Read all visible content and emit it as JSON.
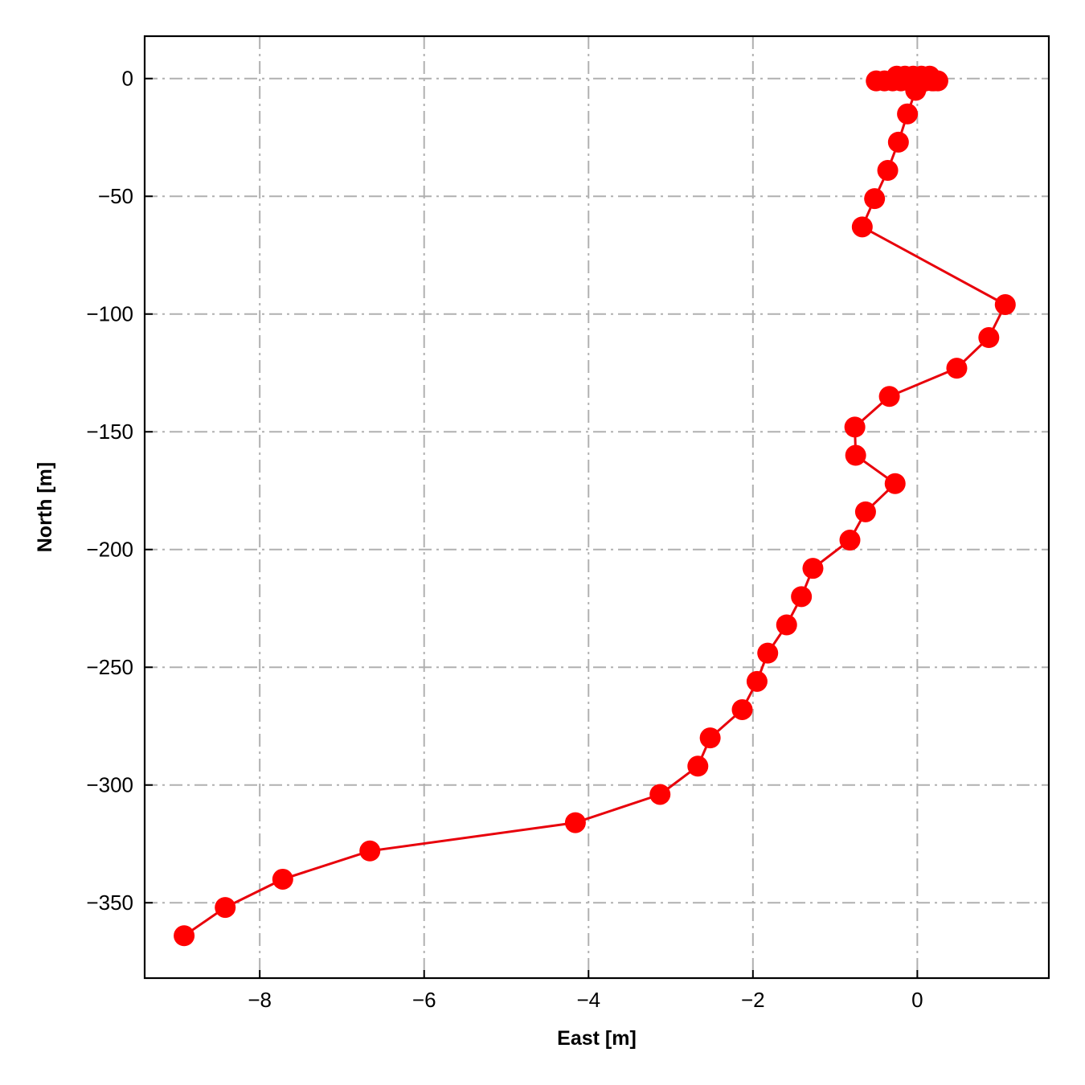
{
  "chart_data": {
    "type": "line",
    "title": "",
    "xlabel": "East [m]",
    "ylabel": "North [m]",
    "xlim": [
      -9.4,
      1.6
    ],
    "ylim": [
      -382,
      18
    ],
    "xticks": [
      -8,
      -6,
      -4,
      -2,
      0
    ],
    "yticks": [
      0,
      -50,
      -100,
      -150,
      -200,
      -250,
      -300,
      -350
    ],
    "xtick_labels": [
      "−8",
      "−6",
      "−4",
      "−2",
      "0"
    ],
    "ytick_labels": [
      "0",
      "−50",
      "−100",
      "−150",
      "−200",
      "−250",
      "−300",
      "−350"
    ],
    "grid": true,
    "legend": "none",
    "series": [
      {
        "color": "#ff0000",
        "line_color": "#e8000b",
        "marker": "circle",
        "x": [
          0.25,
          0.18,
          0.1,
          0.0,
          -0.1,
          -0.2,
          -0.3,
          -0.4,
          -0.5,
          0.15,
          0.05,
          -0.05,
          -0.15,
          -0.25,
          0.2,
          -0.02,
          -0.01,
          -0.12,
          -0.23,
          -0.36,
          -0.52,
          -0.67,
          1.07,
          0.87,
          0.48,
          -0.34,
          -0.76,
          -0.75,
          -0.27,
          -0.63,
          -0.82,
          -1.27,
          -1.41,
          -1.59,
          -1.82,
          -1.95,
          -2.13,
          -2.52,
          -2.67,
          -3.13,
          -4.16,
          -6.66,
          -7.72,
          -8.42,
          -8.92
        ],
        "y": [
          -1,
          -1,
          -1,
          -1,
          -1,
          -1,
          -1,
          -1,
          -1,
          1,
          1,
          1,
          1,
          1,
          -1,
          -5,
          -4,
          -15,
          -27,
          -39,
          -51,
          -63,
          -96,
          -110,
          -123,
          -135,
          -148,
          -160,
          -172,
          -184,
          -196,
          -208,
          -220,
          -232,
          -244,
          -256,
          -268,
          -280,
          -292,
          -304,
          -316,
          -328,
          -340,
          -352,
          -364
        ]
      }
    ]
  }
}
